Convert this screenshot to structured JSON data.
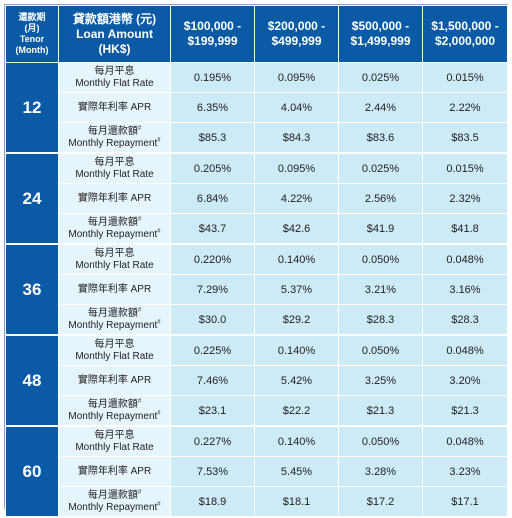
{
  "header": {
    "tenor_zh": "還款期",
    "tenor_unit_zh": "(月)",
    "tenor_en": "Tenor",
    "tenor_unit_en": "(Month)",
    "loan_zh": "貸款額港幣 (元)",
    "loan_en": "Loan Amount (HK$)",
    "amounts": [
      {
        "line1": "$100,000 -",
        "line2": "$199,999"
      },
      {
        "line1": "$200,000 -",
        "line2": "$499,999"
      },
      {
        "line1": "$500,000 -",
        "line2": "$1,499,999"
      },
      {
        "line1": "$1,500,000 -",
        "line2": "$2,000,000"
      }
    ]
  },
  "labels": {
    "flat_zh": "每月平息",
    "flat_en": "Monthly Flat Rate",
    "apr": "實際年利率 APR",
    "repay_zh": "每月還款額",
    "repay_en": "Monthly Repayment",
    "mark": "#"
  },
  "groups": [
    {
      "tenor": "12",
      "flat": [
        "0.195%",
        "0.095%",
        "0.025%",
        "0.015%"
      ],
      "apr": [
        "6.35%",
        "4.04%",
        "2.44%",
        "2.22%"
      ],
      "repay": [
        "$85.3",
        "$84.3",
        "$83.6",
        "$83.5"
      ]
    },
    {
      "tenor": "24",
      "flat": [
        "0.205%",
        "0.095%",
        "0.025%",
        "0.015%"
      ],
      "apr": [
        "6.84%",
        "4.22%",
        "2.56%",
        "2.32%"
      ],
      "repay": [
        "$43.7",
        "$42.6",
        "$41.9",
        "$41.8"
      ]
    },
    {
      "tenor": "36",
      "flat": [
        "0.220%",
        "0.140%",
        "0.050%",
        "0.048%"
      ],
      "apr": [
        "7.29%",
        "5.37%",
        "3.21%",
        "3.16%"
      ],
      "repay": [
        "$30.0",
        "$29.2",
        "$28.3",
        "$28.3"
      ]
    },
    {
      "tenor": "48",
      "flat": [
        "0.225%",
        "0.140%",
        "0.050%",
        "0.048%"
      ],
      "apr": [
        "7.46%",
        "5.42%",
        "3.25%",
        "3.20%"
      ],
      "repay": [
        "$23.1",
        "$22.2",
        "$21.3",
        "$21.3"
      ]
    },
    {
      "tenor": "60",
      "flat": [
        "0.227%",
        "0.140%",
        "0.050%",
        "0.048%"
      ],
      "apr": [
        "7.53%",
        "5.45%",
        "3.28%",
        "3.23%"
      ],
      "repay": [
        "$18.9",
        "$18.1",
        "$17.2",
        "$17.1"
      ]
    }
  ]
}
